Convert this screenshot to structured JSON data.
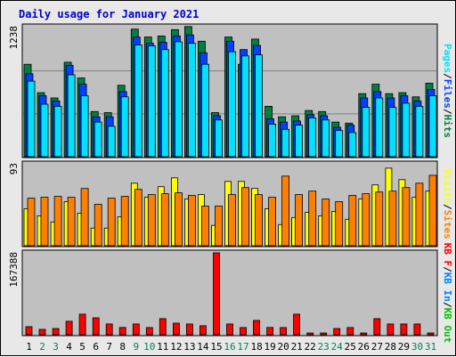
{
  "title": "Daily usage for January 2021",
  "colors": {
    "hits": "#008040",
    "files": "#0040ff",
    "pages": "#00e0ff",
    "visits": "#ffff00",
    "sites": "#ff8000",
    "kbf": "#ff0000",
    "kbin": "#0080ff",
    "kbout": "#00c000",
    "background": "#c0c0c0",
    "weekend_day": "#00805c",
    "weekday_day": "#000000"
  },
  "chart_data": [
    {
      "type": "bar",
      "panel": "top",
      "axis_max_label": "1238",
      "ylim": [
        0,
        1238
      ],
      "x": [
        1,
        2,
        3,
        4,
        5,
        6,
        7,
        8,
        9,
        10,
        11,
        12,
        13,
        14,
        15,
        16,
        17,
        18,
        19,
        20,
        21,
        22,
        23,
        24,
        25,
        26,
        27,
        28,
        29,
        30,
        31
      ],
      "side_labels": [
        "Pages",
        "/",
        "Files",
        "/",
        "Hits"
      ],
      "series": [
        {
          "name": "Hits",
          "key": "hits",
          "values": [
            880,
            610,
            560,
            900,
            750,
            430,
            420,
            680,
            1215,
            1140,
            1150,
            1210,
            1240,
            1100,
            420,
            1140,
            880,
            1120,
            480,
            380,
            390,
            440,
            430,
            330,
            320,
            600,
            690,
            600,
            610,
            570,
            700
          ]
        },
        {
          "name": "Files",
          "key": "files",
          "values": [
            790,
            580,
            530,
            870,
            690,
            380,
            380,
            620,
            1140,
            1080,
            1090,
            1150,
            1160,
            990,
            390,
            1100,
            1020,
            1060,
            360,
            330,
            340,
            400,
            390,
            280,
            300,
            560,
            620,
            560,
            580,
            530,
            640
          ]
        },
        {
          "name": "Pages",
          "key": "pages",
          "values": [
            720,
            500,
            480,
            780,
            580,
            330,
            290,
            570,
            1065,
            1055,
            1020,
            1095,
            1080,
            880,
            350,
            1000,
            960,
            970,
            310,
            260,
            300,
            370,
            350,
            250,
            230,
            470,
            560,
            470,
            510,
            480,
            580
          ]
        }
      ]
    },
    {
      "type": "bar",
      "panel": "middle",
      "axis_max_label": "93",
      "ylim": [
        0,
        93
      ],
      "x": [
        1,
        2,
        3,
        4,
        5,
        6,
        7,
        8,
        9,
        10,
        11,
        12,
        13,
        14,
        15,
        16,
        17,
        18,
        19,
        20,
        21,
        22,
        23,
        24,
        25,
        26,
        27,
        28,
        29,
        30,
        31
      ],
      "side_labels": [
        "Visits",
        "/",
        "Sites"
      ],
      "series": [
        {
          "name": "Visits",
          "key": "visits",
          "values": [
            42,
            34,
            27,
            50,
            37,
            20,
            20,
            33,
            71,
            55,
            67,
            77,
            53,
            58,
            23,
            73,
            73,
            65,
            42,
            24,
            32,
            38,
            34,
            39,
            30,
            53,
            69,
            88,
            75,
            55,
            62
          ]
        },
        {
          "name": "Sites",
          "key": "sites",
          "values": [
            54,
            55,
            56,
            55,
            65,
            47,
            54,
            56,
            64,
            58,
            59,
            60,
            57,
            45,
            45,
            58,
            66,
            58,
            55,
            79,
            58,
            62,
            53,
            50,
            57,
            59,
            61,
            62,
            66,
            71,
            80
          ]
        }
      ]
    },
    {
      "type": "bar",
      "panel": "bottom",
      "axis_max_label": "167388",
      "ylim": [
        0,
        167388
      ],
      "x": [
        1,
        2,
        3,
        4,
        5,
        6,
        7,
        8,
        9,
        10,
        11,
        12,
        13,
        14,
        15,
        16,
        17,
        18,
        19,
        20,
        21,
        22,
        23,
        24,
        25,
        26,
        27,
        28,
        29,
        30,
        31
      ],
      "side_labels": [
        "KB F",
        "/",
        "KB In",
        "/",
        "KB Out"
      ],
      "series": [
        {
          "name": "KB F",
          "key": "kbf",
          "values": [
            16500,
            11000,
            12800,
            27500,
            42000,
            34500,
            22000,
            15000,
            22000,
            14700,
            33000,
            23700,
            22000,
            18300,
            167388,
            22000,
            14700,
            29300,
            15000,
            14700,
            42000,
            3600,
            3600,
            12800,
            14700,
            3600,
            33000,
            22000,
            22000,
            22000,
            3600
          ]
        }
      ]
    }
  ],
  "days": [
    "1",
    "2",
    "3",
    "4",
    "5",
    "6",
    "7",
    "8",
    "9",
    "10",
    "11",
    "12",
    "13",
    "14",
    "15",
    "16",
    "17",
    "18",
    "19",
    "20",
    "21",
    "22",
    "23",
    "24",
    "25",
    "26",
    "27",
    "28",
    "29",
    "30",
    "31"
  ],
  "weekend_days": [
    2,
    3,
    9,
    10,
    16,
    17,
    23,
    24,
    30,
    31
  ]
}
